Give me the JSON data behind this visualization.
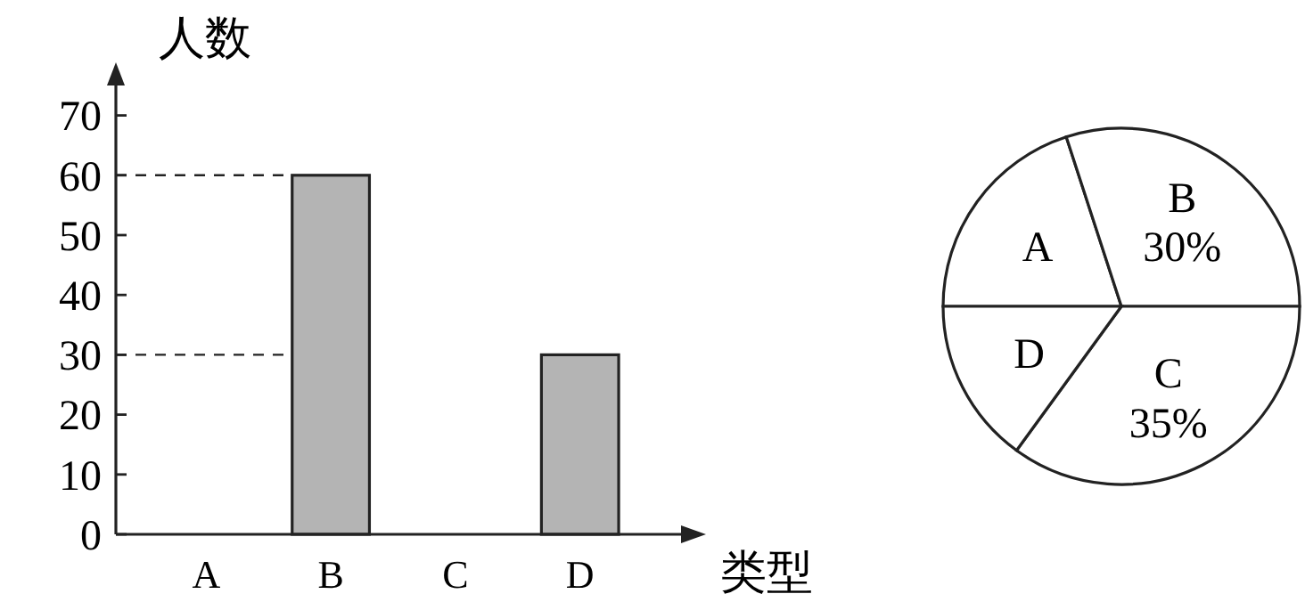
{
  "chart_data": [
    {
      "type": "bar",
      "xlabel": "类型",
      "ylabel": "人数",
      "categories": [
        "A",
        "B",
        "C",
        "D"
      ],
      "values": [
        null,
        60,
        null,
        30
      ],
      "color": "#b4b4b4",
      "ylim": [
        0,
        75
      ],
      "yticks": [
        0,
        10,
        20,
        30,
        40,
        50,
        60,
        70
      ],
      "ref_lines": [
        {
          "axis": "y",
          "value": 60,
          "line_style": "dashed"
        },
        {
          "axis": "y",
          "value": 30,
          "line_style": "dashed"
        }
      ]
    },
    {
      "type": "pie",
      "categories": [
        "A",
        "B",
        "C",
        "D"
      ],
      "values": [
        20,
        30,
        35,
        15
      ],
      "value_labels": [
        null,
        "30%",
        "35%",
        null
      ],
      "colors": [
        "#ffffff",
        "#ffffff",
        "#ffffff",
        "#ffffff"
      ]
    }
  ]
}
